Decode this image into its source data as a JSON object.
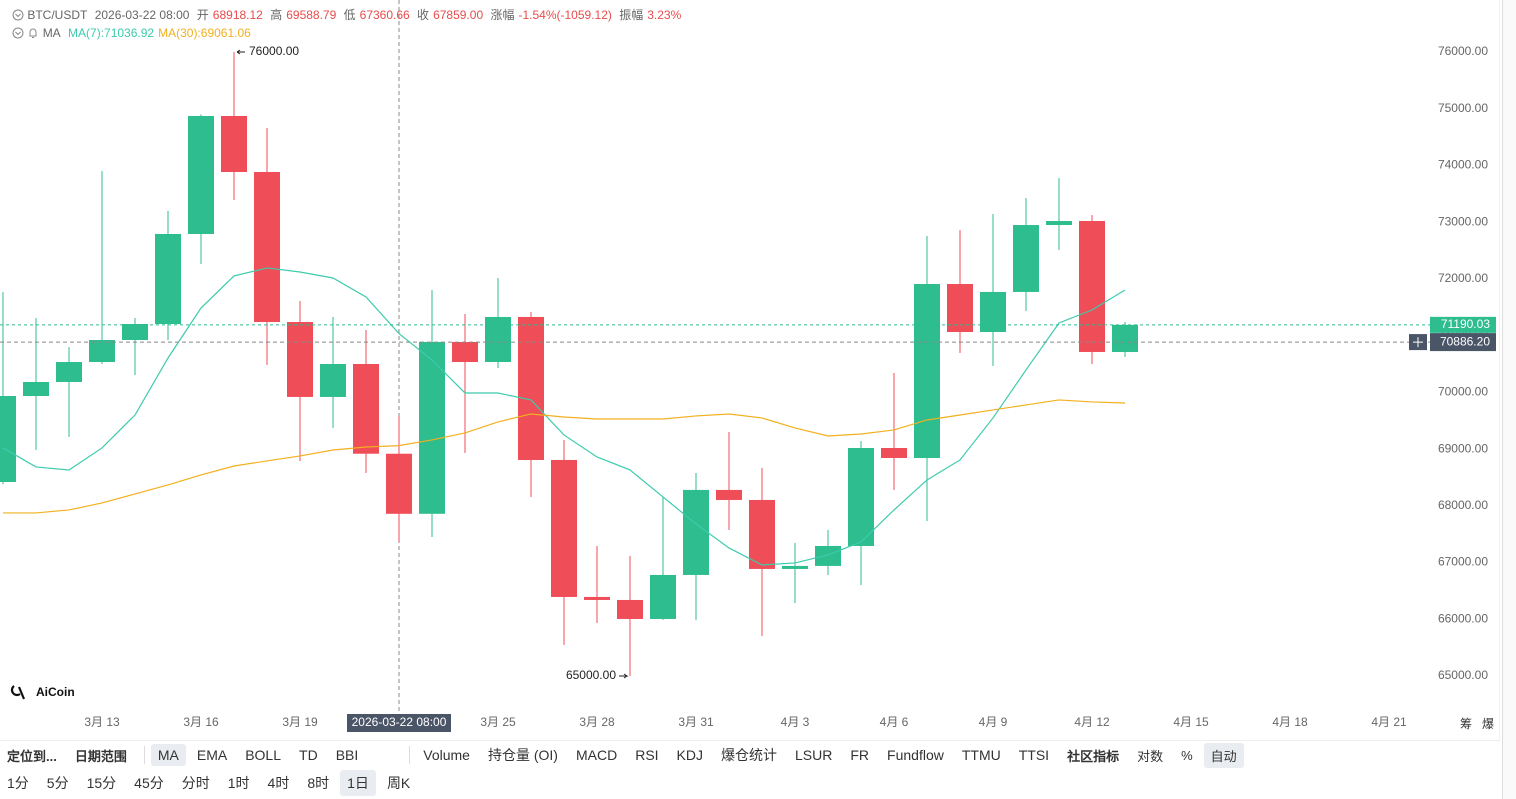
{
  "chart_data": {
    "type": "candlestick",
    "header": {
      "symbol": "BTC/USDT",
      "time": "2026-03-22 08:00",
      "open_label": "开",
      "open": 68918.12,
      "high_label": "高",
      "high": 69588.79,
      "low_label": "低",
      "low": 67360.66,
      "close_label": "收",
      "close": {
        "value": 67859,
        "label": "67859.00"
      },
      "change_label": "涨幅",
      "change": "-1.54%(-1059.12)",
      "amplitude_label": "振幅",
      "amplitude": "3.23%",
      "indicator": "MA"
    },
    "categories": [
      null,
      null,
      null,
      "3月 13",
      null,
      null,
      "3月 16",
      null,
      null,
      "3月 19",
      null,
      null,
      null,
      null,
      null,
      "3月 25",
      null,
      null,
      "3月 28",
      null,
      null,
      "3月 31",
      null,
      null,
      "4月 3",
      null,
      null,
      "4月 6",
      null,
      null,
      "4月 9",
      null,
      null,
      "4月 12",
      null,
      null,
      "4月 15",
      null,
      null,
      "4月 18",
      null,
      null,
      "4月 21"
    ],
    "open": [
      68420,
      69936,
      70183,
      70535,
      70923,
      71205,
      72792,
      74872,
      73885,
      71240,
      69919,
      70500,
      68918.12,
      67859,
      70888,
      70535,
      71329,
      68808,
      66393,
      66340,
      66005,
      66781,
      68280,
      68103,
      66887,
      66940,
      67292,
      69019,
      68843,
      71910,
      71064,
      71770,
      72950,
      73021,
      70712,
      null,
      null,
      null,
      null,
      null,
      null,
      null,
      null
    ],
    "high": [
      71770,
      71311,
      70800,
      73902,
      71311,
      73197,
      74900,
      76000,
      74660,
      71611,
      71329,
      71099,
      69588.79,
      71805,
      71382,
      72016,
      71417,
      69161,
      67292,
      67116,
      68156,
      68579,
      69302,
      68667,
      67345,
      67574,
      69143,
      70342,
      72757,
      72862,
      73144,
      73426,
      73779,
      73127,
      71240,
      null,
      null,
      null,
      null,
      null,
      null,
      null,
      null
    ],
    "low": [
      68380,
      68984,
      69214,
      70500,
      70306,
      70923,
      72263,
      73391,
      70483,
      68790,
      69372,
      68579,
      67360.66,
      67450,
      68931,
      70430,
      68156,
      65547,
      65935,
      65000,
      65990,
      65990,
      67574,
      65706,
      66287,
      66781,
      66605,
      68280,
      67733,
      70694,
      70465,
      71435,
      72510,
      70500,
      70624,
      null,
      null,
      null,
      null,
      null,
      null,
      null,
      null
    ],
    "close": [
      69936,
      70183,
      70535,
      70923,
      71205,
      72792,
      74872,
      73885,
      71240,
      69919,
      70500,
      68918.12,
      67859,
      70888,
      70535,
      71329,
      68808,
      66393,
      66340,
      66005,
      66781,
      68280,
      68103,
      66887,
      66940,
      67292,
      69019,
      68843,
      71910,
      71064,
      71770,
      72950,
      73021,
      70712,
      71190.03,
      null,
      null,
      null,
      null,
      null,
      null,
      null,
      null
    ],
    "up_color": "#2dbd8e",
    "down_color": "#ef4d57",
    "series": [
      {
        "label": "MA(7):71036.92",
        "color": "#3ccbac",
        "values": [
          69020,
          68685,
          68632,
          69020,
          69601,
          70606,
          71487,
          72052,
          72193,
          72122,
          72016,
          71681,
          71036.92,
          70571,
          69989,
          69989,
          69866,
          69249,
          68861,
          68632,
          68156,
          67680,
          67257,
          66957,
          66993,
          67134,
          67363,
          67927,
          68456,
          68808,
          69549,
          70395,
          71223,
          71452,
          71805,
          null,
          null,
          null,
          null,
          null,
          null,
          null,
          null
        ]
      },
      {
        "label": "MA(30):69061.06",
        "color": "#f2b01e",
        "values": [
          67874,
          67874,
          67927,
          68050,
          68209,
          68368,
          68544,
          68702,
          68791,
          68879,
          68984,
          69037,
          69061.06,
          69161,
          69284,
          69478,
          69619,
          69566,
          69531,
          69531,
          69531,
          69584,
          69619,
          69549,
          69372,
          69231,
          69266,
          69337,
          69513,
          69601,
          69690,
          69778,
          69866,
          69831,
          69813,
          null,
          null,
          null,
          null,
          null,
          null,
          null,
          null
        ]
      }
    ],
    "ylim": [
      64365,
      76917
    ],
    "yticks": [
      {
        "value": 65000,
        "label": "65000.00"
      },
      {
        "value": 66000,
        "label": "66000.00"
      },
      {
        "value": 67000,
        "label": "67000.00"
      },
      {
        "value": 68000,
        "label": "68000.00"
      },
      {
        "value": 69000,
        "label": "69000.00"
      },
      {
        "value": 70000,
        "label": "70000.00"
      },
      {
        "value": 71000,
        "label": "71000.00"
      },
      {
        "value": 72000,
        "label": "72000.00"
      },
      {
        "value": 73000,
        "label": "73000.00"
      },
      {
        "value": 74000,
        "label": "74000.00"
      },
      {
        "value": 75000,
        "label": "75000.00"
      },
      {
        "value": 76000,
        "label": "76000.00"
      }
    ],
    "grid": false,
    "max_label": {
      "value": 76000,
      "label": "76000.00"
    },
    "min_label": {
      "value": 65000,
      "label": "65000.00"
    },
    "last_price": {
      "value": 71190.03,
      "label": "71190.03"
    },
    "cursor_price": {
      "value": 70886.2,
      "label": "70886.20"
    },
    "cursor_time": "2026-03-22 08:00",
    "side_tabs": [
      "筹",
      "爆"
    ],
    "logo": "AiCoin"
  },
  "toolbar": {
    "left": [
      "定位到...",
      "日期范围"
    ],
    "main_indicators": [
      "MA",
      "EMA",
      "BOLL",
      "TD",
      "BBI"
    ],
    "sub_indicators": [
      "Volume",
      "持仓量 (OI)",
      "MACD",
      "RSI",
      "KDJ",
      "爆仓统计",
      "LSUR",
      "FR",
      "Fundflow",
      "TTMU",
      "TTSI"
    ],
    "right": [
      "社区指标",
      "对数",
      "%",
      "自动"
    ],
    "intervals": [
      "1分",
      "5分",
      "15分",
      "45分",
      "分时",
      "1时",
      "4时",
      "8时",
      "1日",
      "周K"
    ]
  }
}
